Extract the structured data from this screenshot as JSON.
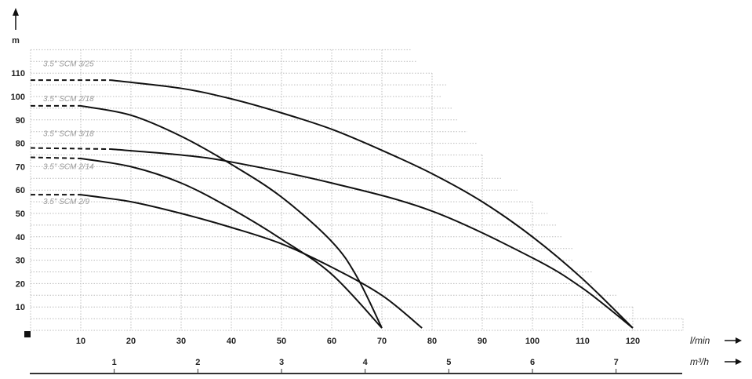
{
  "chart_data": {
    "type": "line",
    "ylabel": "m",
    "xlabel": "l/min",
    "x2label": "m³/h",
    "xlim": [
      0,
      130
    ],
    "ylim": [
      0,
      120
    ],
    "x_ticks": [
      10,
      20,
      30,
      40,
      50,
      60,
      70,
      80,
      90,
      100,
      110,
      120
    ],
    "y_ticks": [
      10,
      20,
      30,
      40,
      50,
      60,
      70,
      80,
      90,
      100,
      110
    ],
    "x2_ticks": [
      1,
      2,
      3,
      4,
      5,
      6,
      7
    ],
    "grid": true,
    "series": [
      {
        "name": "3.5\" SCM 3/25",
        "points": [
          [
            0,
            107
          ],
          [
            16,
            107
          ],
          [
            30,
            103.5
          ],
          [
            40,
            99
          ],
          [
            50,
            93
          ],
          [
            60,
            86
          ],
          [
            70,
            77
          ],
          [
            80,
            67
          ],
          [
            90,
            55
          ],
          [
            100,
            40
          ],
          [
            110,
            22
          ],
          [
            120,
            1
          ]
        ]
      },
      {
        "name": "3.5\" SCM 2/18",
        "points": [
          [
            0,
            96
          ],
          [
            10,
            96
          ],
          [
            20,
            92
          ],
          [
            30,
            83
          ],
          [
            40,
            71
          ],
          [
            50,
            57
          ],
          [
            60,
            38
          ],
          [
            65,
            23
          ],
          [
            70,
            1
          ]
        ]
      },
      {
        "name": "3.5\" SCM 3/18",
        "points": [
          [
            0,
            78
          ],
          [
            16,
            77.5
          ],
          [
            30,
            75
          ],
          [
            40,
            72
          ],
          [
            60,
            63
          ],
          [
            80,
            51
          ],
          [
            100,
            31
          ],
          [
            110,
            18
          ],
          [
            120,
            1
          ]
        ]
      },
      {
        "name": "3.5\" SCM 2/14",
        "points": [
          [
            0,
            74
          ],
          [
            10,
            73.5
          ],
          [
            20,
            70
          ],
          [
            30,
            63
          ],
          [
            40,
            52
          ],
          [
            50,
            39
          ],
          [
            60,
            24
          ],
          [
            70,
            1
          ]
        ]
      },
      {
        "name": "3.5\" SCM 2/9",
        "points": [
          [
            0,
            58
          ],
          [
            10,
            58
          ],
          [
            20,
            55
          ],
          [
            30,
            50
          ],
          [
            40,
            44
          ],
          [
            50,
            37
          ],
          [
            60,
            27
          ],
          [
            70,
            15
          ],
          [
            78,
            1
          ]
        ]
      }
    ]
  }
}
